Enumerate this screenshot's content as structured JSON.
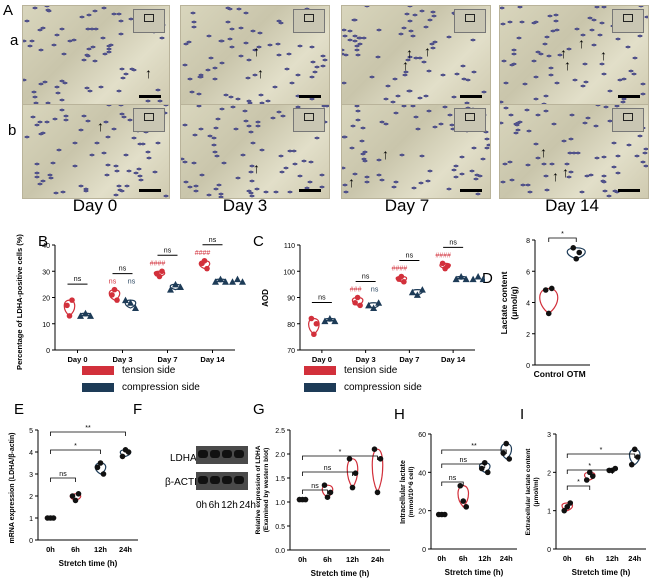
{
  "panel_labels": {
    "A": "A",
    "B": "B",
    "C": "C",
    "D": "D",
    "E": "E",
    "F": "F",
    "G": "G",
    "H": "H",
    "I": "I"
  },
  "row_labels": {
    "a": "a",
    "b": "b"
  },
  "day_labels": [
    "Day 0",
    "Day 3",
    "Day 7",
    "Day 14"
  ],
  "colors": {
    "tension": "#d2303b",
    "compression": "#1d3b57",
    "ns_red": "#d2303b",
    "ns_blue": "#1d3b57"
  },
  "icons": [
    "arrow-up-icon",
    "scale-bar",
    "inset-thumbnail"
  ],
  "western_blot": {
    "bands": [
      "LDHA",
      "β-ACTIN"
    ],
    "lanes": [
      "0h",
      "6h",
      "12h",
      "24h"
    ]
  },
  "legend": {
    "tension": "tension side",
    "compression": "compression side"
  },
  "chart_data": [
    {
      "id": "B",
      "type": "scatter",
      "ylabel": "Percentage of LDHA-positive cells (%)",
      "categories": [
        "Day 0",
        "Day 3",
        "Day 7",
        "Day 14"
      ],
      "ylim": [
        0,
        40
      ],
      "yticks": [
        0,
        10,
        20,
        30,
        40
      ],
      "series": [
        {
          "name": "tension side",
          "values": [
            [
              17,
              13,
              19
            ],
            [
              21,
              23,
              19
            ],
            [
              29,
              28,
              30
            ],
            [
              33,
              34,
              31
            ]
          ]
        },
        {
          "name": "compression side",
          "values": [
            [
              13,
              14,
              13
            ],
            [
              19,
              18,
              16
            ],
            [
              23,
              25,
              24
            ],
            [
              26,
              27,
              26
            ]
          ]
        }
      ],
      "annotations": [
        {
          "category": "Day 0",
          "text": "ns"
        },
        {
          "category": "Day 3",
          "text": "ns"
        },
        {
          "category": "Day 3",
          "text": "ns",
          "side": "tension"
        },
        {
          "category": "Day 3",
          "text": "ns",
          "side": "compression"
        },
        {
          "category": "Day 7",
          "text": "ns"
        },
        {
          "category": "Day 7",
          "text": "####",
          "side": "tension"
        },
        {
          "category": "Day 14",
          "text": "ns"
        },
        {
          "category": "Day 14",
          "text": "####",
          "side": "tension"
        }
      ]
    },
    {
      "id": "C",
      "type": "scatter",
      "ylabel": "AOD",
      "categories": [
        "Day 0",
        "Day 3",
        "Day 7",
        "Day 14"
      ],
      "ylim": [
        70,
        110
      ],
      "yticks": [
        70,
        80,
        90,
        100,
        110
      ],
      "series": [
        {
          "name": "tension side",
          "values": [
            [
              82,
              76,
              80
            ],
            [
              88,
              90,
              87
            ],
            [
              97,
              98,
              96
            ],
            [
              103,
              101,
              102
            ]
          ]
        },
        {
          "name": "compression side",
          "values": [
            [
              81,
              82,
              81
            ],
            [
              87,
              86,
              88
            ],
            [
              92,
              91,
              93
            ],
            [
              97,
              98,
              97
            ]
          ]
        }
      ],
      "annotations": [
        {
          "category": "Day 0",
          "text": "ns"
        },
        {
          "category": "Day 3",
          "text": "ns"
        },
        {
          "category": "Day 3",
          "text": "###",
          "side": "tension"
        },
        {
          "category": "Day 3",
          "text": "ns",
          "side": "compression"
        },
        {
          "category": "Day 7",
          "text": "ns"
        },
        {
          "category": "Day 7",
          "text": "####",
          "side": "tension"
        },
        {
          "category": "Day 14",
          "text": "ns"
        },
        {
          "category": "Day 14",
          "text": "####",
          "side": "tension"
        }
      ]
    },
    {
      "id": "D",
      "type": "scatter",
      "ylabel": "Lactate content (μmol/g)",
      "categories": [
        "Control",
        "OTM"
      ],
      "ylim": [
        0,
        8
      ],
      "yticks": [
        0,
        2,
        4,
        6,
        8
      ],
      "series": [
        {
          "values": [
            [
              4.8,
              3.3,
              4.9
            ],
            [
              7.5,
              6.8,
              7.2
            ]
          ]
        }
      ],
      "colors": [
        "#d2303b",
        "#1d3b57"
      ],
      "annotations": [
        {
          "between": [
            "Control",
            "OTM"
          ],
          "text": "*"
        }
      ]
    },
    {
      "id": "E",
      "type": "scatter",
      "ylabel": "mRNA expression (LDHA/β-actin)",
      "xlabel": "Stretch time (h)",
      "categories": [
        "0h",
        "6h",
        "12h",
        "24h"
      ],
      "ylim": [
        0,
        5
      ],
      "yticks": [
        0,
        1,
        2,
        3,
        4,
        5
      ],
      "series": [
        {
          "values": [
            [
              1.0,
              1.0,
              1.0
            ],
            [
              2.0,
              1.8,
              2.1
            ],
            [
              3.3,
              3.5,
              3.0
            ],
            [
              3.8,
              4.1,
              4.0
            ]
          ]
        }
      ],
      "colors": [
        "#d2303b",
        "#d2303b",
        "#1d3b57",
        "#1d3b57"
      ],
      "annotations": [
        {
          "between": [
            "0h",
            "6h"
          ],
          "text": "ns"
        },
        {
          "between": [
            "0h",
            "12h"
          ],
          "text": "*"
        },
        {
          "between": [
            "0h",
            "24h"
          ],
          "text": "**"
        }
      ]
    },
    {
      "id": "G",
      "type": "scatter",
      "ylabel": "Relative expression of LDHA (Examined by western blot)",
      "xlabel": "Stretch time (h)",
      "categories": [
        "0h",
        "6h",
        "12h",
        "24h"
      ],
      "ylim": [
        0,
        2.5
      ],
      "yticks": [
        0.0,
        0.5,
        1.0,
        1.5,
        2.0,
        2.5
      ],
      "series": [
        {
          "values": [
            [
              1.05,
              1.05,
              1.05
            ],
            [
              1.35,
              1.1,
              1.2
            ],
            [
              1.9,
              1.3,
              1.6
            ],
            [
              2.1,
              1.2,
              1.9
            ]
          ]
        }
      ],
      "colors": [
        "#d2303b",
        "#d2303b",
        "#d2303b",
        "#d2303b"
      ],
      "annotations": [
        {
          "between": [
            "0h",
            "6h"
          ],
          "text": "ns"
        },
        {
          "between": [
            "0h",
            "12h"
          ],
          "text": "ns"
        },
        {
          "between": [
            "0h",
            "24h"
          ],
          "text": "*"
        }
      ]
    },
    {
      "id": "H",
      "type": "scatter",
      "ylabel": "Intracellular lactate (mmol/10^6 cell)",
      "xlabel": "Stretch time (h)",
      "categories": [
        "0h",
        "6h",
        "12h",
        "24h"
      ],
      "ylim": [
        0,
        60
      ],
      "yticks": [
        0,
        20,
        40,
        60
      ],
      "series": [
        {
          "values": [
            [
              18,
              18,
              18
            ],
            [
              33,
              25,
              22
            ],
            [
              42,
              45,
              40
            ],
            [
              50,
              55,
              47
            ]
          ]
        }
      ],
      "colors": [
        "#d2303b",
        "#d2303b",
        "#1d3b57",
        "#1d3b57"
      ],
      "annotations": [
        {
          "between": [
            "0h",
            "6h"
          ],
          "text": "ns"
        },
        {
          "between": [
            "0h",
            "12h"
          ],
          "text": "ns"
        },
        {
          "between": [
            "0h",
            "24h"
          ],
          "text": "**"
        }
      ]
    },
    {
      "id": "I",
      "type": "scatter",
      "ylabel": "Extracellular lactate content (μmol/ml)",
      "xlabel": "Stretch time (h)",
      "categories": [
        "0h",
        "6h",
        "12h",
        "24h"
      ],
      "ylim": [
        0,
        3
      ],
      "yticks": [
        0,
        1,
        2,
        3
      ],
      "series": [
        {
          "values": [
            [
              1.0,
              1.1,
              1.2
            ],
            [
              1.8,
              2.0,
              1.9
            ],
            [
              2.05,
              2.05,
              2.1
            ],
            [
              2.2,
              2.6,
              2.4
            ]
          ]
        }
      ],
      "colors": [
        "#d2303b",
        "#d2303b",
        "#1d3b57",
        "#1d3b57"
      ],
      "annotations": [
        {
          "between": [
            "0h",
            "6h"
          ],
          "text": "*"
        },
        {
          "between": [
            "0h",
            "12h"
          ],
          "text": "*"
        },
        {
          "between": [
            "0h",
            "24h"
          ],
          "text": "*"
        }
      ]
    }
  ]
}
